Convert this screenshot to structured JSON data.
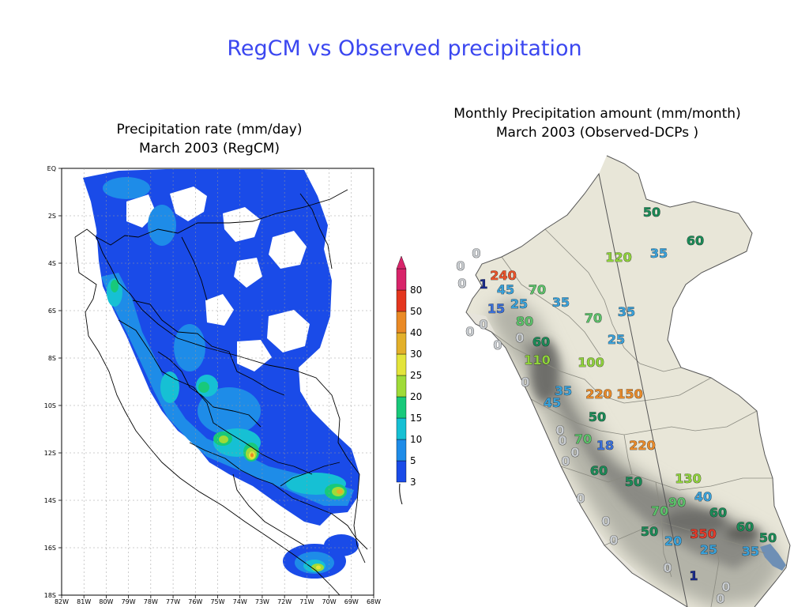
{
  "slide": {
    "title": "RegCM vs Observed precipitation"
  },
  "left_panel": {
    "caption_line1": "Precipitation rate (mm/day)",
    "caption_line2": "March 2003 (RegCM)",
    "lat_labels": [
      "EQ",
      "2S",
      "4S",
      "6S",
      "8S",
      "10S",
      "12S",
      "14S",
      "16S",
      "18S"
    ],
    "lon_labels": [
      "82W",
      "81W",
      "80W",
      "79W",
      "78W",
      "77W",
      "76W",
      "75W",
      "74W",
      "73W",
      "72W",
      "71W",
      "70W",
      "69W",
      "68W"
    ],
    "colorbar": {
      "levels": [
        "3",
        "5",
        "10",
        "15",
        "20",
        "25",
        "30",
        "40",
        "50",
        "80"
      ],
      "colors": [
        "#1a4be8",
        "#1e8ce8",
        "#16c0d4",
        "#18c97a",
        "#9fdb38",
        "#e3e43a",
        "#e3b02a",
        "#ea8a25",
        "#e4361e",
        "#d8246a"
      ]
    }
  },
  "right_panel": {
    "caption_line1": "Monthly Precipitation amount (mm/month)",
    "caption_line2": "March 2003 (Observed-DCPs )",
    "observations": [
      {
        "v": "50",
        "c": "#1b8a57"
      },
      {
        "v": "60",
        "c": "#1b8a57"
      },
      {
        "v": "120",
        "c": "#8fd13c"
      },
      {
        "v": "35",
        "c": "#3aa0d8"
      },
      {
        "v": "0",
        "c": "#c8ccd0"
      },
      {
        "v": "0",
        "c": "#c8ccd0"
      },
      {
        "v": "240",
        "c": "#e8522a"
      },
      {
        "v": "1",
        "c": "#1a2a8a"
      },
      {
        "v": "0",
        "c": "#c8ccd0"
      },
      {
        "v": "45",
        "c": "#3aa0d8"
      },
      {
        "v": "70",
        "c": "#5cc06a"
      },
      {
        "v": "15",
        "c": "#3a6fd8"
      },
      {
        "v": "25",
        "c": "#3aa0d8"
      },
      {
        "v": "35",
        "c": "#3aa0d8"
      },
      {
        "v": "35",
        "c": "#3aa0d8"
      },
      {
        "v": "0",
        "c": "#c8ccd0"
      },
      {
        "v": "80",
        "c": "#5cc06a"
      },
      {
        "v": "70",
        "c": "#5cc06a"
      },
      {
        "v": "0",
        "c": "#c8ccd0"
      },
      {
        "v": "0",
        "c": "#c8ccd0"
      },
      {
        "v": "0",
        "c": "#c8ccd0"
      },
      {
        "v": "60",
        "c": "#1b8a57"
      },
      {
        "v": "25",
        "c": "#3aa0d8"
      },
      {
        "v": "110",
        "c": "#8fd13c"
      },
      {
        "v": "100",
        "c": "#8fd13c"
      },
      {
        "v": "0",
        "c": "#c8ccd0"
      },
      {
        "v": "35",
        "c": "#3aa0d8"
      },
      {
        "v": "220",
        "c": "#e88a2a"
      },
      {
        "v": "150",
        "c": "#e88a2a"
      },
      {
        "v": "45",
        "c": "#3aa0d8"
      },
      {
        "v": "50",
        "c": "#1b8a57"
      },
      {
        "v": "0",
        "c": "#c8ccd0"
      },
      {
        "v": "0",
        "c": "#c8ccd0"
      },
      {
        "v": "70",
        "c": "#5cc06a"
      },
      {
        "v": "18",
        "c": "#3a6fd8"
      },
      {
        "v": "220",
        "c": "#e88a2a"
      },
      {
        "v": "0",
        "c": "#c8ccd0"
      },
      {
        "v": "0",
        "c": "#c8ccd0"
      },
      {
        "v": "60",
        "c": "#1b8a57"
      },
      {
        "v": "50",
        "c": "#1b8a57"
      },
      {
        "v": "130",
        "c": "#8fd13c"
      },
      {
        "v": "0",
        "c": "#c8ccd0"
      },
      {
        "v": "40",
        "c": "#3aa0d8"
      },
      {
        "v": "90",
        "c": "#5cc06a"
      },
      {
        "v": "70",
        "c": "#5cc06a"
      },
      {
        "v": "60",
        "c": "#1b8a57"
      },
      {
        "v": "0",
        "c": "#c8ccd0"
      },
      {
        "v": "60",
        "c": "#1b8a57"
      },
      {
        "v": "50",
        "c": "#1b8a57"
      },
      {
        "v": "350",
        "c": "#e23a2a"
      },
      {
        "v": "50",
        "c": "#1b8a57"
      },
      {
        "v": "0",
        "c": "#c8ccd0"
      },
      {
        "v": "20",
        "c": "#3aa0d8"
      },
      {
        "v": "25",
        "c": "#3aa0d8"
      },
      {
        "v": "35",
        "c": "#3aa0d8"
      },
      {
        "v": "0",
        "c": "#c8ccd0"
      },
      {
        "v": "1",
        "c": "#1a2a8a"
      },
      {
        "v": "0",
        "c": "#c8ccd0"
      },
      {
        "v": "0",
        "c": "#c8ccd0"
      }
    ]
  }
}
